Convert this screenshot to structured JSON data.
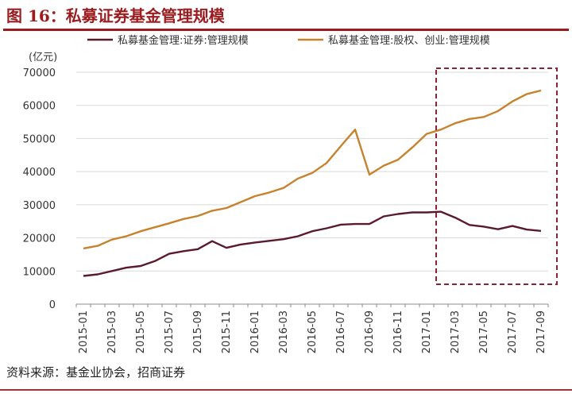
{
  "figure": {
    "title": "图 16：私募证券基金管理规模",
    "source": "资料来源：基金业协会，招商证券"
  },
  "chart_data": {
    "type": "line",
    "unit_label": "(亿元)",
    "ylim": [
      0,
      70000
    ],
    "yticks": [
      0,
      10000,
      20000,
      30000,
      40000,
      50000,
      60000,
      70000
    ],
    "xtick_labels": [
      "2015-01",
      "2015-03",
      "2015-05",
      "2015-07",
      "2015-09",
      "2015-11",
      "2016-01",
      "2016-03",
      "2016-05",
      "2016-07",
      "2016-09",
      "2016-11",
      "2017-01",
      "2017-03",
      "2017-05",
      "2017-07",
      "2017-09"
    ],
    "x": [
      "2015-01",
      "2015-02",
      "2015-03",
      "2015-04",
      "2015-05",
      "2015-06",
      "2015-07",
      "2015-08",
      "2015-09",
      "2015-10",
      "2015-11",
      "2015-12",
      "2016-01",
      "2016-02",
      "2016-03",
      "2016-04",
      "2016-05",
      "2016-06",
      "2016-07",
      "2016-08",
      "2016-09",
      "2016-10",
      "2016-11",
      "2016-12",
      "2017-01",
      "2017-02",
      "2017-03",
      "2017-04",
      "2017-05",
      "2017-06",
      "2017-07",
      "2017-08",
      "2017-09"
    ],
    "series": [
      {
        "name": "私募基金管理:证券:管理规模",
        "color": "#5b1a2c",
        "values": [
          8500,
          9000,
          10000,
          11000,
          11500,
          13000,
          15200,
          16000,
          16600,
          19000,
          17000,
          18000,
          18600,
          19100,
          19600,
          20500,
          22000,
          22900,
          24000,
          24200,
          24200,
          26500,
          27200,
          27700,
          27700,
          27900,
          26100,
          23900,
          23400,
          22600,
          23600,
          22500,
          22100
        ]
      },
      {
        "name": "私募基金管理:股权、创业:管理规模",
        "color": "#c6822c",
        "values": [
          16800,
          17600,
          19500,
          20500,
          22000,
          23200,
          24400,
          25700,
          26600,
          28200,
          29000,
          30800,
          32600,
          33700,
          35100,
          37900,
          39600,
          42600,
          47700,
          52700,
          39100,
          41800,
          43600,
          47300,
          51400,
          52700,
          54600,
          55900,
          56500,
          58300,
          61200,
          63400,
          64500
        ]
      }
    ],
    "highlight": {
      "from": "2017-02",
      "to": "2017-09",
      "style": "dashed-box",
      "color": "#8b2332"
    },
    "legend_position": "top",
    "grid": "horizontal"
  }
}
